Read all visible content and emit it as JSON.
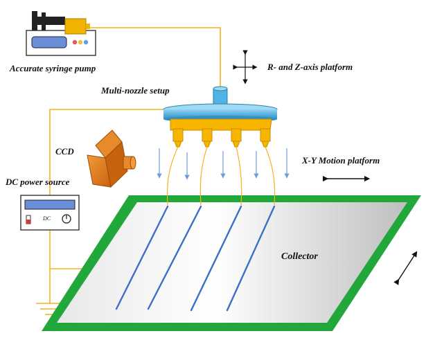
{
  "labels": {
    "syringe_pump": "Accurate syringe pump",
    "rz_platform": "R- and Z-axis platform",
    "multi_nozzle": "Multi-nozzle setup",
    "ccd": "CCD",
    "xy_platform": "X-Y Motion platform",
    "dc_power": "DC power source",
    "collector": "Collector",
    "dc_badge": "DC"
  },
  "colors": {
    "wire": "#f5b21a",
    "nozzle_body": "#f7b500",
    "nozzle_cap": "#4fb3e3",
    "collector_border": "#22a83a",
    "fiber": "#3b6fc7",
    "arrow": "#6f9bd8",
    "ccd": "#e07b1b",
    "pump_screen": "#6a8fd8"
  },
  "icons": [
    "syringe-pump-icon",
    "ccd-camera-icon",
    "dc-power-icon",
    "ground-icon",
    "double-arrow-icon"
  ]
}
